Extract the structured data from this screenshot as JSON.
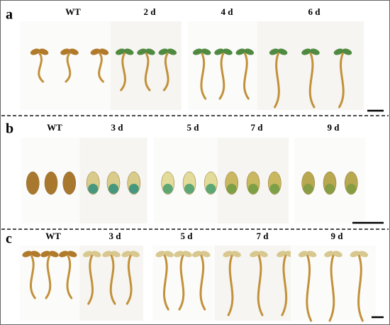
{
  "panels": [
    {
      "label": "a",
      "columns": [
        "WT",
        "2 d",
        "4 d",
        "6 d"
      ]
    },
    {
      "label": "b",
      "columns": [
        "WT",
        "3 d",
        "5 d",
        "7 d",
        "9 d"
      ]
    },
    {
      "label": "c",
      "columns": [
        "WT",
        "3 d",
        "5 d",
        "7 d",
        "9 d"
      ]
    }
  ]
}
